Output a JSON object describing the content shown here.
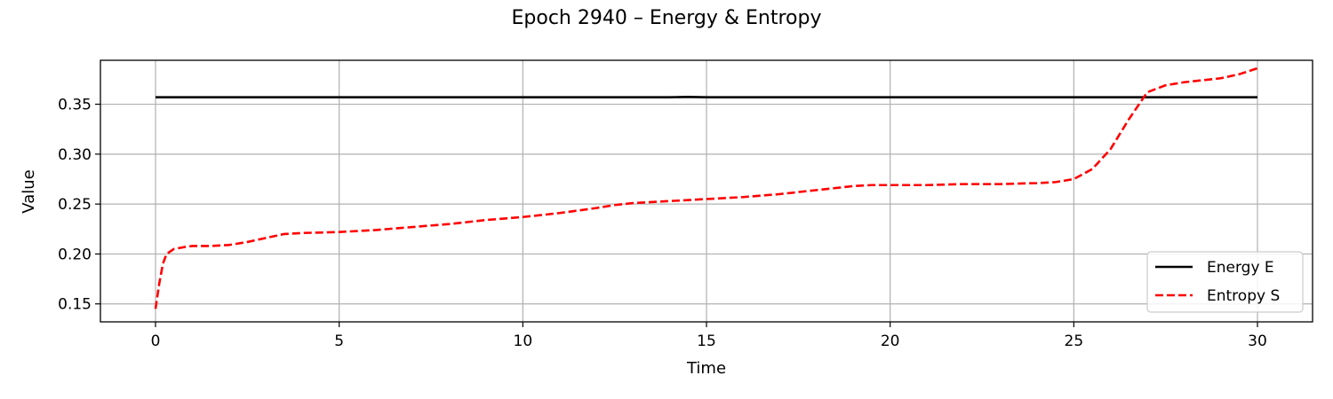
{
  "chart_data": {
    "type": "line",
    "title": "Epoch 2940 – Energy & Entropy",
    "xlabel": "Time",
    "ylabel": "Value",
    "xlim": [
      -1.5,
      31.5
    ],
    "ylim": [
      0.132,
      0.394
    ],
    "xticks": [
      0,
      5,
      10,
      15,
      20,
      25,
      30
    ],
    "xtick_labels": [
      "0",
      "5",
      "10",
      "15",
      "20",
      "25",
      "30"
    ],
    "yticks": [
      0.15,
      0.2,
      0.25,
      0.3,
      0.35
    ],
    "ytick_labels": [
      "0.15",
      "0.20",
      "0.25",
      "0.30",
      "0.35"
    ],
    "grid": true,
    "legend_position": "lower-right",
    "series": [
      {
        "name": "Energy E",
        "color": "#000000",
        "style": "solid",
        "x": [
          0,
          0.5,
          1,
          2,
          3,
          4,
          5,
          6,
          7,
          8,
          9,
          10,
          11,
          12,
          13,
          14,
          14.5,
          15,
          16,
          17,
          18,
          19,
          20,
          21,
          22,
          23,
          24,
          25,
          26,
          27,
          28,
          29,
          30
        ],
        "y": [
          0.357,
          0.357,
          0.357,
          0.357,
          0.357,
          0.357,
          0.357,
          0.357,
          0.357,
          0.357,
          0.357,
          0.357,
          0.357,
          0.357,
          0.357,
          0.357,
          0.3573,
          0.357,
          0.357,
          0.357,
          0.357,
          0.357,
          0.357,
          0.357,
          0.357,
          0.357,
          0.357,
          0.357,
          0.357,
          0.357,
          0.357,
          0.357,
          0.357
        ]
      },
      {
        "name": "Entropy S",
        "color": "#ff0000",
        "style": "dashed",
        "x": [
          0,
          0.1,
          0.2,
          0.3,
          0.5,
          0.8,
          1,
          1.5,
          2,
          2.5,
          3,
          3.5,
          4,
          5,
          6,
          7,
          8,
          9,
          10,
          11,
          12,
          12.5,
          13,
          14,
          15,
          16,
          17,
          18,
          19,
          19.5,
          20,
          21,
          22,
          23,
          24,
          24.5,
          25,
          25.5,
          26,
          26.5,
          27,
          27.5,
          28,
          28.5,
          29,
          29.5,
          30
        ],
        "y": [
          0.145,
          0.17,
          0.19,
          0.2,
          0.205,
          0.207,
          0.208,
          0.208,
          0.209,
          0.212,
          0.216,
          0.22,
          0.221,
          0.222,
          0.224,
          0.227,
          0.23,
          0.234,
          0.237,
          0.241,
          0.246,
          0.249,
          0.251,
          0.253,
          0.255,
          0.257,
          0.26,
          0.264,
          0.268,
          0.269,
          0.269,
          0.269,
          0.27,
          0.27,
          0.271,
          0.272,
          0.275,
          0.285,
          0.305,
          0.335,
          0.362,
          0.369,
          0.372,
          0.374,
          0.376,
          0.38,
          0.386
        ]
      }
    ]
  }
}
